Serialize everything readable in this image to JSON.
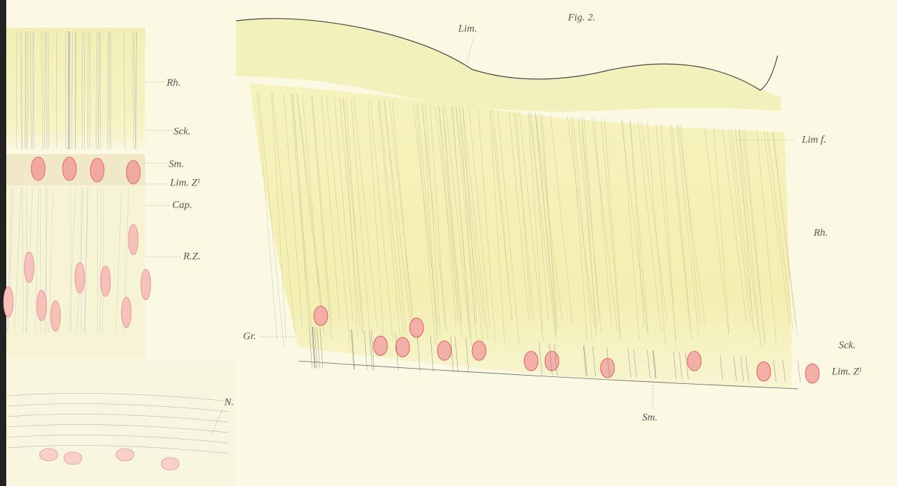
{
  "figure": {
    "title": "Fig. 2."
  },
  "left_panel": {
    "labels": [
      "Rh.",
      "Sck.",
      "Sm.",
      "Lim. Zᴵ",
      "Cap.",
      "R.Z.",
      "N."
    ]
  },
  "right_panel": {
    "labels": [
      "Lim.",
      "Lim f.",
      "Rh.",
      "Gr.",
      "Sck.",
      "Lim. Zᴵ",
      "Sm."
    ]
  }
}
